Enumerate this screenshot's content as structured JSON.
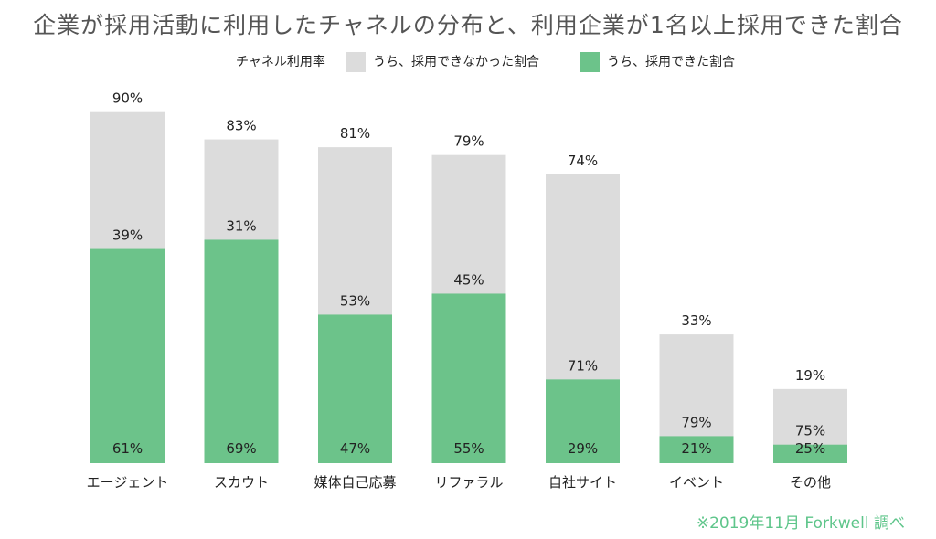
{
  "title": "企業が採用活動に利用したチャネルの分布と、利用企業が1名以上採用できた割合",
  "note": "※2019年11月 Forkwell 調べ",
  "colors": {
    "usage_bar": "#dcdcdc",
    "hired_bar": "#6cc38a",
    "text": "#222222",
    "note": "#5ec58a"
  },
  "legend": {
    "usage_label": "チャネル利用率",
    "not_hired_label": "うち、採用できなかった割合",
    "hired_label": "うち、採用できた割合"
  },
  "chart_data": {
    "type": "bar",
    "title": "企業が採用活動に利用したチャネルの分布と、利用企業が1名以上採用できた割合",
    "categories": [
      "エージェント",
      "スカウト",
      "媒体自己応募",
      "リファラル",
      "自社サイト",
      "イベント",
      "その他"
    ],
    "usage_rate": [
      90,
      83,
      81,
      79,
      74,
      33,
      19
    ],
    "not_hired_share": [
      39,
      31,
      53,
      45,
      71,
      79,
      75
    ],
    "hired_share": [
      61,
      69,
      47,
      55,
      29,
      21,
      25
    ],
    "series": [
      {
        "name": "チャネル利用率",
        "values": [
          90,
          83,
          81,
          79,
          74,
          33,
          19
        ]
      },
      {
        "name": "うち、採用できなかった割合",
        "values": [
          39,
          31,
          53,
          45,
          71,
          79,
          75
        ]
      },
      {
        "name": "うち、採用できた割合",
        "values": [
          61,
          69,
          47,
          55,
          29,
          21,
          25
        ]
      }
    ],
    "ylim": [
      0,
      100
    ],
    "grid": false,
    "legend_position": "top"
  }
}
